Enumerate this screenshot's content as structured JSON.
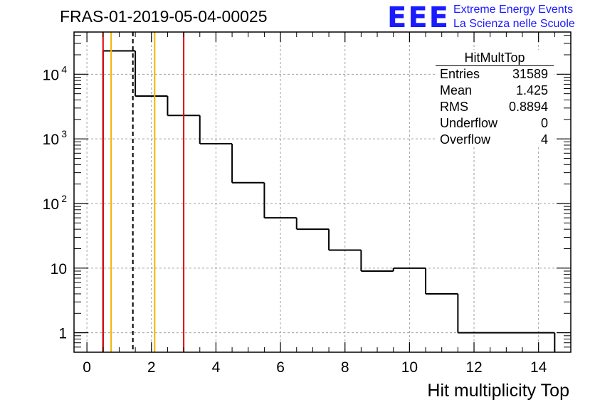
{
  "header": {
    "title": "FRAS-01-2019-05-04-00025",
    "logo_mark": "EEE",
    "logo_line1": "Extreme Energy Events",
    "logo_line2": "La Scienza nelle Scuole"
  },
  "stats": {
    "title": "HitMultTop",
    "rows": [
      {
        "label": "Entries",
        "value": "31589"
      },
      {
        "label": "Mean",
        "value": "1.425"
      },
      {
        "label": "RMS",
        "value": "0.8894"
      },
      {
        "label": "Underflow",
        "value": "0"
      },
      {
        "label": "Overflow",
        "value": "4"
      }
    ]
  },
  "chart_data": {
    "type": "histogram",
    "xlabel": "Hit multiplicity Top",
    "ylabel": "",
    "xlim": [
      -0.4,
      15.0
    ],
    "ylim": [
      0.5,
      45000
    ],
    "yscale": "log",
    "grid": true,
    "x_ticks": [
      0,
      2,
      4,
      6,
      8,
      10,
      12,
      14
    ],
    "y_ticks": [
      {
        "value": 1,
        "label": "1"
      },
      {
        "value": 10,
        "label": "10"
      },
      {
        "value": 100,
        "label": "10",
        "sup": "2"
      },
      {
        "value": 1000,
        "label": "10",
        "sup": "3"
      },
      {
        "value": 10000,
        "label": "10",
        "sup": "4"
      }
    ],
    "bins": [
      {
        "low": 0.5,
        "high": 1.5,
        "count": 23000
      },
      {
        "low": 1.5,
        "high": 2.5,
        "count": 4600
      },
      {
        "low": 2.5,
        "high": 3.5,
        "count": 2300
      },
      {
        "low": 3.5,
        "high": 4.5,
        "count": 840
      },
      {
        "low": 4.5,
        "high": 5.5,
        "count": 210
      },
      {
        "low": 5.5,
        "high": 6.5,
        "count": 60
      },
      {
        "low": 6.5,
        "high": 7.5,
        "count": 40
      },
      {
        "low": 7.5,
        "high": 8.5,
        "count": 19
      },
      {
        "low": 8.5,
        "high": 9.5,
        "count": 9
      },
      {
        "low": 9.5,
        "high": 10.5,
        "count": 10
      },
      {
        "low": 10.5,
        "high": 11.5,
        "count": 4
      },
      {
        "low": 11.5,
        "high": 14.5,
        "count": 1
      }
    ],
    "vertical_lines": [
      {
        "x": 0.5,
        "color": "#e00000",
        "style": "solid"
      },
      {
        "x": 0.75,
        "color": "#f5b400",
        "style": "solid"
      },
      {
        "x": 1.425,
        "color": "#000000",
        "style": "dashed"
      },
      {
        "x": 2.1,
        "color": "#f5b400",
        "style": "solid"
      },
      {
        "x": 3.0,
        "color": "#e00000",
        "style": "solid"
      }
    ]
  }
}
